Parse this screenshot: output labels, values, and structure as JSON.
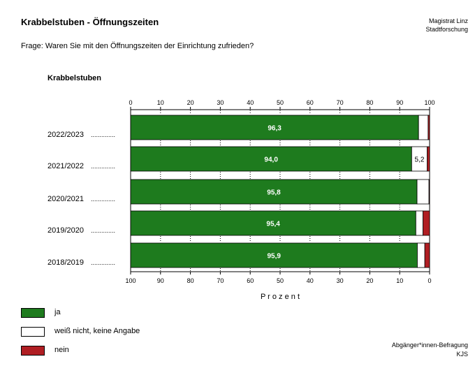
{
  "header": {
    "title": "Krabbelstuben - Öffnungszeiten",
    "org_line1": "Magistrat Linz",
    "org_line2": "Stadtforschung",
    "question": "Frage: Waren Sie mit den Öffnungszeiten der Einrichtung zufrieden?"
  },
  "footer": {
    "line1": "Abgänger*innen-Befragung",
    "line2": "KJS"
  },
  "colors": {
    "ja": "#1e7b1e",
    "weiss_nicht": "#ffffff",
    "nein": "#b01e23"
  },
  "chart_data": {
    "type": "bar",
    "orientation": "horizontal",
    "stacked": true,
    "title": "Krabbelstuben",
    "xlabel": "P r o z e n t",
    "xlim": [
      0,
      100
    ],
    "top_ticks": [
      "0",
      "10",
      "20",
      "30",
      "40",
      "50",
      "60",
      "70",
      "80",
      "90",
      "100"
    ],
    "bottom_ticks": [
      "100",
      "90",
      "80",
      "70",
      "60",
      "50",
      "40",
      "30",
      "20",
      "10",
      "0"
    ],
    "categories": [
      "2022/2023",
      "2021/2022",
      "2020/2021",
      "2019/2020",
      "2018/2019"
    ],
    "category_suffix": "..............",
    "series": [
      {
        "name": "ja",
        "values": [
          96.3,
          94.0,
          95.8,
          95.4,
          95.9
        ]
      },
      {
        "name": "weiß nicht, keine Angabe",
        "values": [
          3.2,
          5.2,
          4.0,
          2.4,
          2.5
        ]
      },
      {
        "name": "nein",
        "values": [
          0.5,
          0.8,
          0.2,
          2.2,
          1.6
        ]
      }
    ],
    "labels": [
      [
        "96,3",
        "",
        ""
      ],
      [
        "94,0",
        "5,2",
        ""
      ],
      [
        "95,8",
        "",
        ""
      ],
      [
        "95,4",
        "",
        ""
      ],
      [
        "95,9",
        "",
        ""
      ]
    ],
    "legend_placement": "bottom-left"
  }
}
